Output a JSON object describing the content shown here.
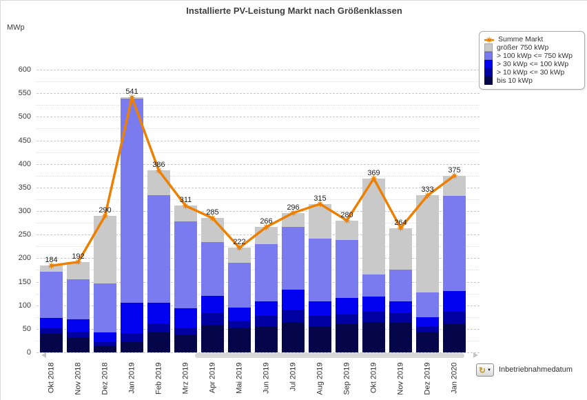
{
  "title": "Installierte PV-Leistung Markt nach Größenklassen",
  "y_axis": {
    "unit": "MWp",
    "min": 0,
    "max": 600,
    "major_step": 50,
    "minor_step": 25
  },
  "x_axis": {
    "dimension_label": "Inbetriebnahmedatum"
  },
  "legend": {
    "items": [
      {
        "label": "Summe Markt",
        "marker": "line-star",
        "color": "#EC8004"
      },
      {
        "label": "größer 750 kWp",
        "marker": "swatch",
        "color": "#C9C9C9"
      },
      {
        "label": "> 100 kWp <= 750 kWp",
        "marker": "swatch",
        "color": "#7B7BF0"
      },
      {
        "label": "> 30 kWp <= 100 kWp",
        "marker": "swatch",
        "color": "#0202F0"
      },
      {
        "label": "> 10 kWp <= 30 kWp",
        "marker": "swatch",
        "color": "#0000A0"
      },
      {
        "label": "bis 10 kWp",
        "marker": "swatch",
        "color": "#05054A"
      }
    ]
  },
  "chart_data": {
    "type": "bar",
    "subtype": "stacked-bars-with-line-overlay",
    "title": "Installierte PV-Leistung Markt nach Größenklassen",
    "ylabel": "MWp",
    "ylim": [
      0,
      600
    ],
    "grid": "major-dashed-minor-dotted",
    "legend_position": "top-right",
    "categories": [
      "Okt 2018",
      "Nov 2018",
      "Dez 2018",
      "Jan 2019",
      "Feb 2019",
      "Mrz 2019",
      "Apr 2019",
      "Mai 2019",
      "Jun 2019",
      "Jul 2019",
      "Aug 2019",
      "Sep 2019",
      "Okt 2019",
      "Nov 2019",
      "Dez 2019",
      "Jan 2020"
    ],
    "series": [
      {
        "name": "bis 10 kWp",
        "color": "#05054A",
        "values": [
          39,
          31,
          15,
          23,
          42,
          38,
          58,
          52,
          55,
          64,
          54,
          60,
          65,
          63,
          42,
          60
        ]
      },
      {
        "name": "> 10 kWp <= 30 kWp",
        "color": "#0000A0",
        "values": [
          12,
          13,
          7,
          18,
          19,
          15,
          26,
          16,
          23,
          27,
          23,
          20,
          22,
          21,
          13,
          26
        ]
      },
      {
        "name": "> 30 kWp <= 100 kWp",
        "color": "#0202F0",
        "values": [
          22,
          26,
          21,
          65,
          45,
          40,
          36,
          27,
          31,
          42,
          32,
          35,
          31,
          24,
          19,
          44
        ]
      },
      {
        "name": "> 100 kWp <= 750 kWp",
        "color": "#7B7BF0",
        "values": [
          98,
          85,
          104,
          432,
          228,
          185,
          114,
          95,
          121,
          134,
          132,
          124,
          47,
          68,
          54,
          202
        ]
      },
      {
        "name": "größer 750 kWp",
        "color": "#C9C9C9",
        "values": [
          13,
          37,
          143,
          3,
          52,
          33,
          51,
          32,
          36,
          29,
          74,
          41,
          204,
          88,
          205,
          43
        ]
      }
    ],
    "line_series": {
      "name": "Summe Markt",
      "color": "#EC8004",
      "values": [
        184,
        192,
        290,
        541,
        386,
        311,
        285,
        222,
        266,
        296,
        315,
        280,
        369,
        264,
        333,
        375
      ]
    },
    "bar_value_labels": [
      184,
      192,
      290,
      541,
      386,
      311,
      285,
      222,
      266,
      296,
      315,
      280,
      369,
      264,
      333,
      375
    ]
  },
  "footer": {
    "button_label": "Inbetriebnahmedatum"
  }
}
